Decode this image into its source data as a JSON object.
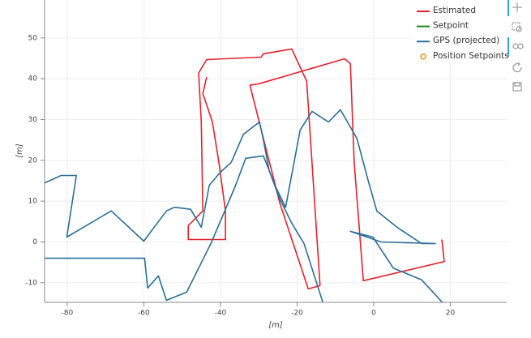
{
  "chart_data": {
    "type": "line",
    "x_label": "[m]",
    "y_label": "[m]",
    "xlim": [
      -85.9,
      34.7
    ],
    "ylim": [
      -14.8,
      59.3
    ],
    "xticks": [
      -80,
      -60,
      -40,
      -20,
      0,
      20
    ],
    "yticks": [
      -10,
      0,
      10,
      20,
      30,
      40,
      50
    ],
    "grid": true,
    "legend": "top-right",
    "series": [
      {
        "name": "Estimated",
        "color": "#e3222d",
        "x": [
          17.8,
          18.4,
          -2.7,
          -5.1,
          -6.1,
          -7.6,
          -29.8,
          -32.3,
          -24.5,
          -17.1,
          -14.0,
          -17.5,
          -21.4,
          -28.8,
          -29.4,
          -43.6,
          -45.7,
          -45.0,
          -44.6,
          -48.4,
          -48.4,
          -38.7,
          -38.7,
          -40.4,
          -42.1,
          -44.6,
          -43.6
        ],
        "values": [
          0.6,
          -4.8,
          -9.5,
          19.5,
          43.7,
          44.9,
          38.8,
          38.4,
          9.5,
          -11.5,
          -10.7,
          39.4,
          47.3,
          46.1,
          45.3,
          44.7,
          41.4,
          29.4,
          7.6,
          4.0,
          0.6,
          0.6,
          7.6,
          19.5,
          29.4,
          36.4,
          40.4
        ]
      },
      {
        "name": "Setpoint",
        "color": "#1e8a1e",
        "x": [],
        "values": []
      },
      {
        "name": "GPS (projected)",
        "color": "#2a6f97",
        "x": [
          -85.8,
          -81.6,
          -77.6,
          -80.1,
          -68.5,
          -60.0,
          -54.1,
          -52.0,
          -47.8,
          -45.0,
          -42.9,
          -40.0,
          -37.2,
          -34.0,
          -29.8,
          -28.8,
          -27.3,
          -24.5,
          -21.4,
          -18.2,
          -13.3,
          null,
          -85.8,
          -59.8,
          -59.0,
          -56.2,
          -54.1,
          -48.8,
          -42.5,
          -36.2,
          -33.4,
          -28.8,
          -25.6,
          -23.0,
          -19.2,
          -16.1,
          -11.8,
          -8.7,
          -4.4,
          -1.3,
          0.8,
          6.1,
          12.5,
          16.1,
          1.9,
          -6.1,
          -0.2,
          5.1,
          12.5,
          18.4
        ],
        "values": [
          14.5,
          16.3,
          16.3,
          1.2,
          7.6,
          0.2,
          7.6,
          8.5,
          8.0,
          3.6,
          13.9,
          17.1,
          19.5,
          26.4,
          29.4,
          25.0,
          17.5,
          10.5,
          4.6,
          -0.4,
          -14.7,
          null,
          -4.0,
          -4.0,
          -11.3,
          -8.3,
          -14.3,
          -12.3,
          -0.4,
          13.5,
          20.5,
          21.1,
          13.5,
          8.5,
          27.4,
          32.0,
          29.4,
          32.4,
          25.4,
          14.5,
          7.6,
          3.6,
          -0.4,
          -0.4,
          0.0,
          2.6,
          1.2,
          -6.4,
          -9.3,
          -15.3
        ]
      },
      {
        "name": "Position Setpoints",
        "color": "#e89a2c",
        "marker": "circle",
        "x": [],
        "values": []
      }
    ]
  }
}
